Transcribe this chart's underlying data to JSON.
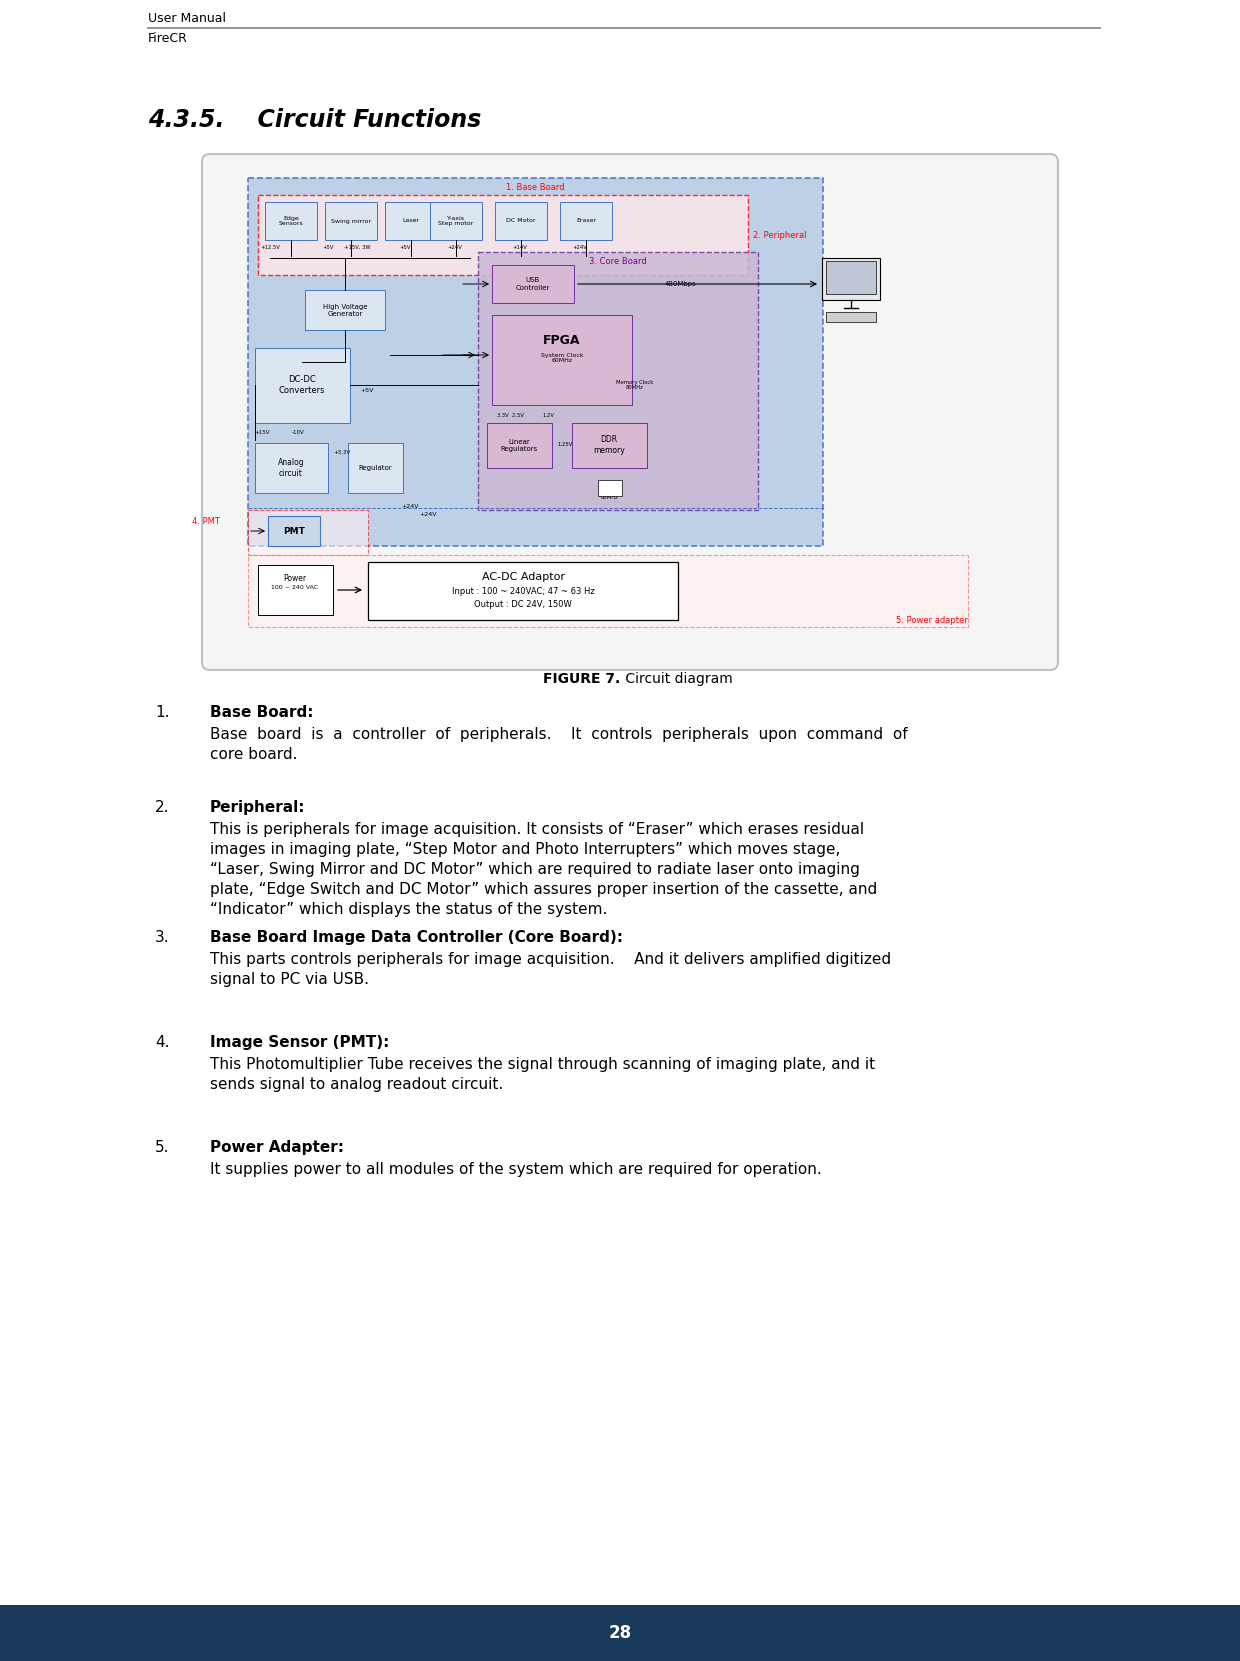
{
  "page_width": 12.4,
  "page_height": 16.61,
  "dpi": 100,
  "bg_color": "#ffffff",
  "header_line_color": "#808080",
  "header_text1": "User Manual",
  "header_text2": "FireCR",
  "footer_bg_color": "#1a3a5c",
  "footer_text": "28",
  "footer_text_color": "#ffffff",
  "section_title": "4.3.5.    Circuit Functions",
  "figure_caption_bold": "FIGURE 7.",
  "figure_caption_normal": " Circuit diagram",
  "items": [
    {
      "num": "1.",
      "title": "Base Board:",
      "body": [
        "Base  board  is  a  controller  of  peripherals.    It  controls  peripherals  upon  command  of",
        "core board."
      ]
    },
    {
      "num": "2.",
      "title": "Peripheral:",
      "body": [
        "This is peripherals for image acquisition. It consists of “Eraser” which erases residual",
        "images in imaging plate, “Step Motor and Photo Interrupters” which moves stage,",
        "“Laser, Swing Mirror and DC Motor” which are required to radiate laser onto imaging",
        "plate, “Edge Switch and DC Motor” which assures proper insertion of the cassette, and",
        "“Indicator” which displays the status of the system."
      ]
    },
    {
      "num": "3.",
      "title": "Base Board Image Data Controller (Core Board):",
      "body": [
        "This parts controls peripherals for image acquisition.    And it delivers amplified digitized",
        "signal to PC via USB."
      ]
    },
    {
      "num": "4.",
      "title": "Image Sensor (PMT):",
      "body": [
        "This Photomultiplier Tube receives the signal through scanning of imaging plate, and it",
        "sends signal to analog readout circuit."
      ]
    },
    {
      "num": "5.",
      "title": "Power Adapter:",
      "body": [
        "It supplies power to all modules of the system which are required for operation."
      ]
    }
  ],
  "diagram_outer_fill": "#f5f5f5",
  "diagram_outer_border": "#c0c0c0",
  "base_board_fill": "#b8cce4",
  "base_board_border": "#4472c4",
  "peripheral_fill": "#ffe8e8",
  "peripheral_border": "#ff0000",
  "core_board_fill": "#c9b8d4",
  "core_board_border": "#7030a0",
  "component_fill": "#dce6f1",
  "component_border": "#4472c4",
  "core_comp_fill": "#d9b8d4",
  "core_comp_border": "#7030a0",
  "pmt_fill": "#c8d8e8",
  "pmt_border": "#4472c4",
  "power_outer_fill": "#fff0f0",
  "power_outer_border": "#ff9999",
  "black": "#000000",
  "red": "#ff0000",
  "purple": "#7030a0",
  "gray": "#808080"
}
